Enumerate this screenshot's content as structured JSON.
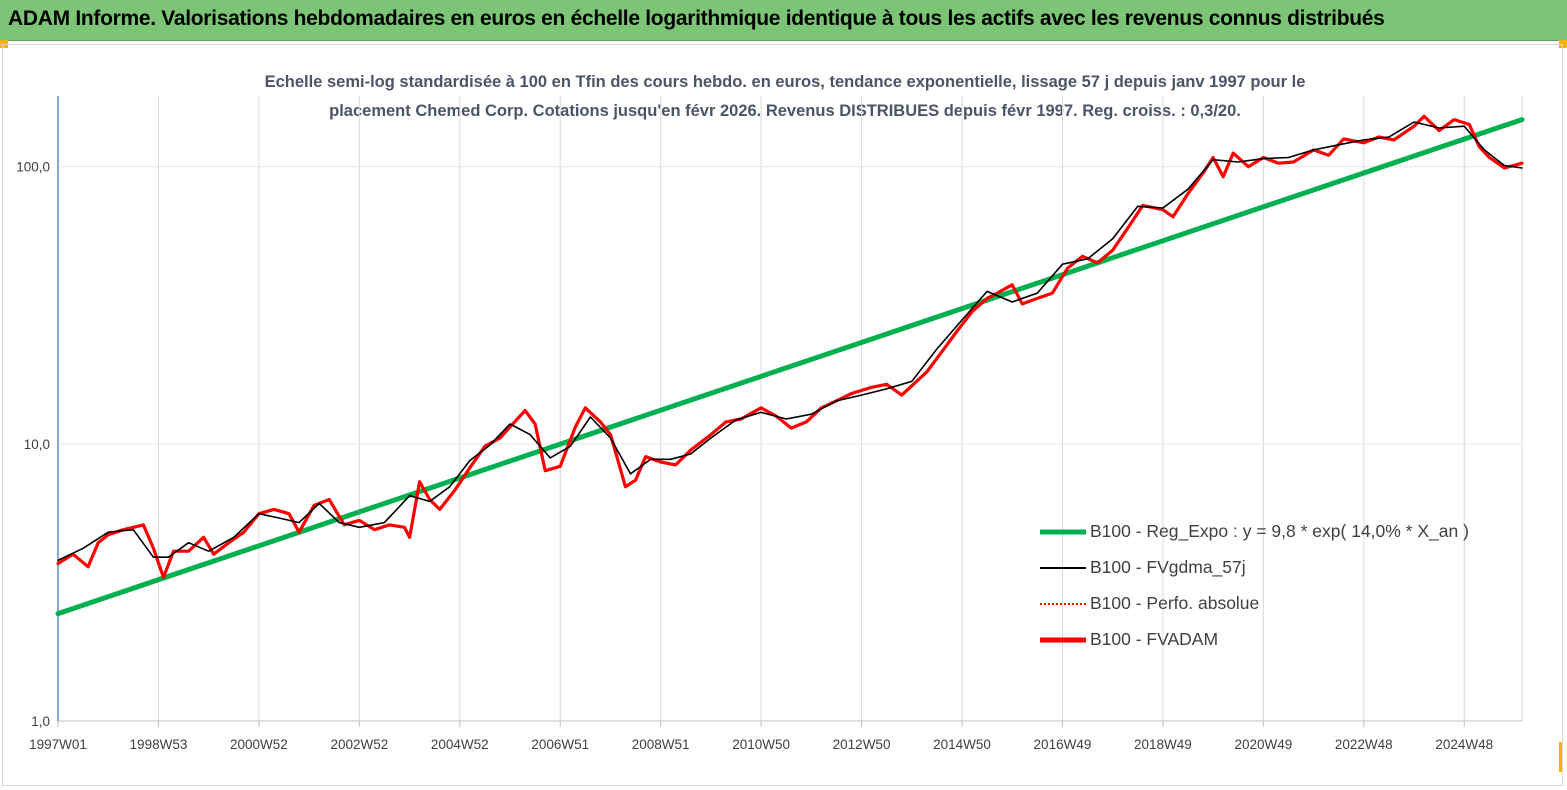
{
  "banner": {
    "title": "ADAM Informe. Valorisations hebdomadaires en euros en échelle logarithmique identique à tous les actifs avec les revenus connus distribués",
    "color": "#7cc576"
  },
  "chart_data": {
    "type": "line",
    "title_line1": "Echelle semi-log standardisée à 100 en Tfin des cours hebdo. en euros, tendance exponentielle, lissage 57 j depuis janv 1997 pour le",
    "title_line2": "placement Chemed Corp. Cotations jusqu'en févr 2026. Revenus DISTRIBUES depuis févr 1997. Reg. croiss. : 0,3/20.",
    "y_scale": "log",
    "ylim": [
      1,
      180
    ],
    "y_ticks": [
      {
        "value": 1,
        "label": "1,0"
      },
      {
        "value": 10,
        "label": "10,0"
      },
      {
        "value": 100,
        "label": "100,0"
      }
    ],
    "x_range_years": [
      1997.0,
      2026.15
    ],
    "x_ticks": [
      {
        "year": 1997.0,
        "label": "1997W01"
      },
      {
        "year": 1999.0,
        "label": "1998W53"
      },
      {
        "year": 2001.0,
        "label": "2000W52"
      },
      {
        "year": 2003.0,
        "label": "2002W52"
      },
      {
        "year": 2005.0,
        "label": "2004W52"
      },
      {
        "year": 2007.0,
        "label": "2006W51"
      },
      {
        "year": 2009.0,
        "label": "2008W51"
      },
      {
        "year": 2011.0,
        "label": "2010W50"
      },
      {
        "year": 2013.0,
        "label": "2012W50"
      },
      {
        "year": 2015.0,
        "label": "2014W50"
      },
      {
        "year": 2017.0,
        "label": "2016W49"
      },
      {
        "year": 2019.0,
        "label": "2018W49"
      },
      {
        "year": 2021.0,
        "label": "2020W49"
      },
      {
        "year": 2023.0,
        "label": "2022W48"
      },
      {
        "year": 2025.0,
        "label": "2024W48"
      }
    ],
    "grid": "vertical",
    "legend_position": "bottom-right",
    "series": [
      {
        "name": "B100 - Reg_Expo : y = 9,8 * exp( 14,0% *  X_an )",
        "color": "#00b050",
        "style": "solid-thick",
        "points": [
          [
            1997.0,
            2.44
          ],
          [
            2026.15,
            148
          ]
        ]
      },
      {
        "name": "B100 - FVgdma_57j",
        "color": "#000000",
        "style": "solid-thin",
        "points": [
          [
            1997.0,
            3.8
          ],
          [
            1997.5,
            4.2
          ],
          [
            1998.0,
            4.8
          ],
          [
            1998.5,
            4.9
          ],
          [
            1998.9,
            3.9
          ],
          [
            1999.2,
            3.9
          ],
          [
            1999.6,
            4.4
          ],
          [
            2000.0,
            4.1
          ],
          [
            2000.5,
            4.6
          ],
          [
            2001.0,
            5.6
          ],
          [
            2001.4,
            5.4
          ],
          [
            2001.8,
            5.2
          ],
          [
            2002.2,
            6.1
          ],
          [
            2002.6,
            5.2
          ],
          [
            2003.0,
            5.0
          ],
          [
            2003.5,
            5.2
          ],
          [
            2004.0,
            6.5
          ],
          [
            2004.4,
            6.2
          ],
          [
            2004.8,
            7.0
          ],
          [
            2005.2,
            8.7
          ],
          [
            2005.6,
            9.9
          ],
          [
            2006.0,
            11.8
          ],
          [
            2006.4,
            10.8
          ],
          [
            2006.8,
            8.9
          ],
          [
            2007.2,
            9.8
          ],
          [
            2007.6,
            12.5
          ],
          [
            2008.0,
            10.5
          ],
          [
            2008.4,
            7.8
          ],
          [
            2008.8,
            8.8
          ],
          [
            2009.2,
            8.8
          ],
          [
            2009.6,
            9.2
          ],
          [
            2010.0,
            10.5
          ],
          [
            2010.5,
            12.2
          ],
          [
            2011.0,
            13.0
          ],
          [
            2011.5,
            12.3
          ],
          [
            2012.0,
            12.8
          ],
          [
            2012.5,
            14.3
          ],
          [
            2013.0,
            15.0
          ],
          [
            2013.5,
            15.8
          ],
          [
            2014.0,
            16.8
          ],
          [
            2014.5,
            22.0
          ],
          [
            2015.0,
            28.0
          ],
          [
            2015.5,
            35.5
          ],
          [
            2016.0,
            32.5
          ],
          [
            2016.5,
            35.0
          ],
          [
            2017.0,
            44.5
          ],
          [
            2017.5,
            46.5
          ],
          [
            2018.0,
            55.0
          ],
          [
            2018.5,
            72.0
          ],
          [
            2019.0,
            71.0
          ],
          [
            2019.5,
            83.0
          ],
          [
            2020.0,
            106.0
          ],
          [
            2020.5,
            104.0
          ],
          [
            2021.0,
            107.0
          ],
          [
            2021.5,
            108.0
          ],
          [
            2022.0,
            115.0
          ],
          [
            2022.5,
            120.0
          ],
          [
            2023.0,
            125.0
          ],
          [
            2023.5,
            128.0
          ],
          [
            2024.0,
            145.0
          ],
          [
            2024.5,
            138.0
          ],
          [
            2025.0,
            140.0
          ],
          [
            2025.4,
            115.0
          ],
          [
            2025.8,
            101.0
          ],
          [
            2026.15,
            99.0
          ]
        ]
      },
      {
        "name": "B100 - Perfo. absolue",
        "color": "#ff0000",
        "style": "dotted",
        "points": []
      },
      {
        "name": "B100 - FVADAM",
        "color": "#ff0000",
        "style": "solid-thick",
        "points": [
          [
            1997.0,
            3.7
          ],
          [
            1997.3,
            4.0
          ],
          [
            1997.6,
            3.6
          ],
          [
            1997.8,
            4.4
          ],
          [
            1998.0,
            4.7
          ],
          [
            1998.3,
            4.9
          ],
          [
            1998.7,
            5.1
          ],
          [
            1998.9,
            4.2
          ],
          [
            1999.1,
            3.3
          ],
          [
            1999.3,
            4.1
          ],
          [
            1999.6,
            4.1
          ],
          [
            1999.9,
            4.6
          ],
          [
            2000.1,
            4.0
          ],
          [
            2000.4,
            4.4
          ],
          [
            2000.7,
            4.8
          ],
          [
            2001.0,
            5.6
          ],
          [
            2001.3,
            5.8
          ],
          [
            2001.6,
            5.6
          ],
          [
            2001.8,
            4.8
          ],
          [
            2002.1,
            6.0
          ],
          [
            2002.4,
            6.3
          ],
          [
            2002.7,
            5.1
          ],
          [
            2003.0,
            5.3
          ],
          [
            2003.3,
            4.9
          ],
          [
            2003.6,
            5.1
          ],
          [
            2003.9,
            5.0
          ],
          [
            2004.0,
            4.6
          ],
          [
            2004.2,
            7.3
          ],
          [
            2004.4,
            6.3
          ],
          [
            2004.6,
            5.8
          ],
          [
            2004.9,
            6.8
          ],
          [
            2005.2,
            8.2
          ],
          [
            2005.5,
            9.8
          ],
          [
            2005.8,
            10.5
          ],
          [
            2006.0,
            11.5
          ],
          [
            2006.3,
            13.2
          ],
          [
            2006.5,
            11.8
          ],
          [
            2006.7,
            8.0
          ],
          [
            2007.0,
            8.3
          ],
          [
            2007.3,
            11.5
          ],
          [
            2007.5,
            13.5
          ],
          [
            2007.8,
            12.0
          ],
          [
            2008.0,
            10.8
          ],
          [
            2008.3,
            7.0
          ],
          [
            2008.5,
            7.4
          ],
          [
            2008.7,
            9.0
          ],
          [
            2009.0,
            8.6
          ],
          [
            2009.3,
            8.4
          ],
          [
            2009.6,
            9.5
          ],
          [
            2010.0,
            10.8
          ],
          [
            2010.3,
            12.0
          ],
          [
            2010.6,
            12.3
          ],
          [
            2011.0,
            13.5
          ],
          [
            2011.3,
            12.6
          ],
          [
            2011.6,
            11.4
          ],
          [
            2011.9,
            12.0
          ],
          [
            2012.2,
            13.5
          ],
          [
            2012.5,
            14.3
          ],
          [
            2012.8,
            15.2
          ],
          [
            2013.2,
            16.0
          ],
          [
            2013.5,
            16.4
          ],
          [
            2013.8,
            15.0
          ],
          [
            2014.0,
            16.2
          ],
          [
            2014.3,
            18.2
          ],
          [
            2014.6,
            21.5
          ],
          [
            2014.9,
            25.5
          ],
          [
            2015.2,
            30.0
          ],
          [
            2015.5,
            33.5
          ],
          [
            2015.7,
            35.0
          ],
          [
            2016.0,
            37.5
          ],
          [
            2016.2,
            32.0
          ],
          [
            2016.5,
            33.5
          ],
          [
            2016.8,
            35.0
          ],
          [
            2017.1,
            43.0
          ],
          [
            2017.4,
            47.5
          ],
          [
            2017.7,
            45.0
          ],
          [
            2018.0,
            50.0
          ],
          [
            2018.3,
            60.0
          ],
          [
            2018.6,
            72.5
          ],
          [
            2019.0,
            70.0
          ],
          [
            2019.2,
            66.0
          ],
          [
            2019.5,
            80.0
          ],
          [
            2019.8,
            95.0
          ],
          [
            2020.0,
            108.0
          ],
          [
            2020.2,
            92.0
          ],
          [
            2020.4,
            112.0
          ],
          [
            2020.7,
            100.0
          ],
          [
            2021.0,
            108.0
          ],
          [
            2021.3,
            103.0
          ],
          [
            2021.6,
            104.0
          ],
          [
            2022.0,
            115.0
          ],
          [
            2022.3,
            110.0
          ],
          [
            2022.6,
            126.0
          ],
          [
            2023.0,
            122.0
          ],
          [
            2023.3,
            128.0
          ],
          [
            2023.6,
            125.0
          ],
          [
            2024.0,
            140.0
          ],
          [
            2024.2,
            152.0
          ],
          [
            2024.5,
            135.0
          ],
          [
            2024.8,
            148.0
          ],
          [
            2025.1,
            142.0
          ],
          [
            2025.3,
            118.0
          ],
          [
            2025.5,
            108.0
          ],
          [
            2025.8,
            99.0
          ],
          [
            2026.15,
            103.0
          ]
        ]
      }
    ]
  }
}
